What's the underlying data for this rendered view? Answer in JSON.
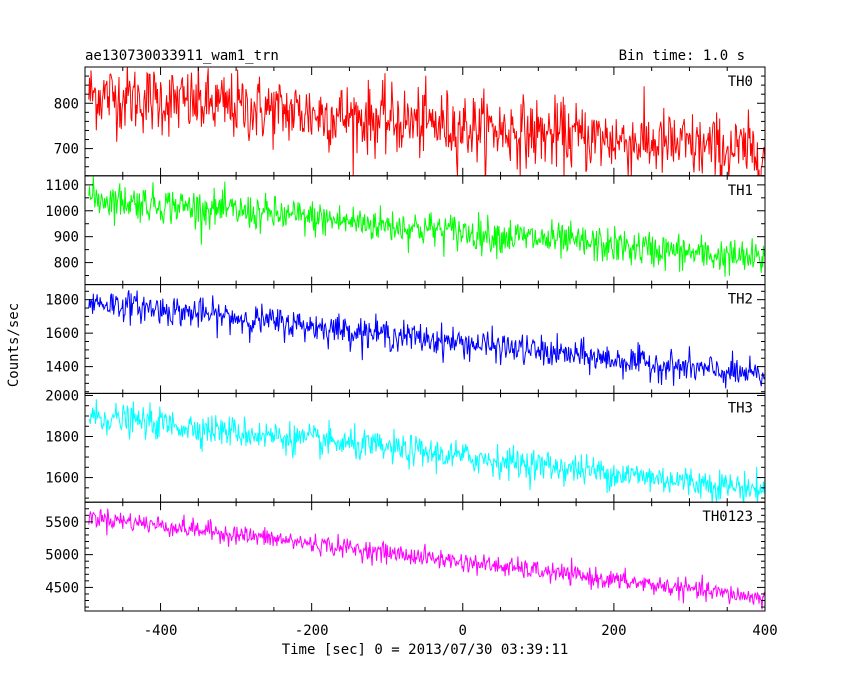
{
  "header": {
    "left": "ae130730033911_wam1_trn",
    "right": "Bin time: 1.0 s"
  },
  "chart_data": {
    "type": "line",
    "xlabel": "Time [sec] 0 = 2013/07/30 03:39:11",
    "ylabel": "Counts/sec",
    "xlim": [
      -500,
      400
    ],
    "xticks": [
      -400,
      -200,
      0,
      200,
      400
    ],
    "panels": [
      {
        "name": "TH0",
        "color": "#ff0000",
        "ylim": [
          640,
          880
        ],
        "yticks": [
          700,
          800
        ],
        "start": 820,
        "end": 690,
        "noise": 38
      },
      {
        "name": "TH1",
        "color": "#00ff00",
        "ylim": [
          715,
          1135
        ],
        "yticks": [
          800,
          900,
          1000,
          1100
        ],
        "start": 1050,
        "end": 810,
        "noise": 35
      },
      {
        "name": "TH2",
        "color": "#0000ff",
        "ylim": [
          1240,
          1890
        ],
        "yticks": [
          1400,
          1600,
          1800
        ],
        "start": 1790,
        "end": 1340,
        "noise": 45
      },
      {
        "name": "TH3",
        "color": "#00ffff",
        "ylim": [
          1480,
          2010
        ],
        "yticks": [
          1600,
          1800,
          2000
        ],
        "start": 1900,
        "end": 1540,
        "noise": 38
      },
      {
        "name": "TH0123",
        "color": "#ff00ff",
        "ylim": [
          4140,
          5800
        ],
        "yticks": [
          4500,
          5000,
          5500
        ],
        "start": 5580,
        "end": 4330,
        "noise": 75
      }
    ]
  }
}
